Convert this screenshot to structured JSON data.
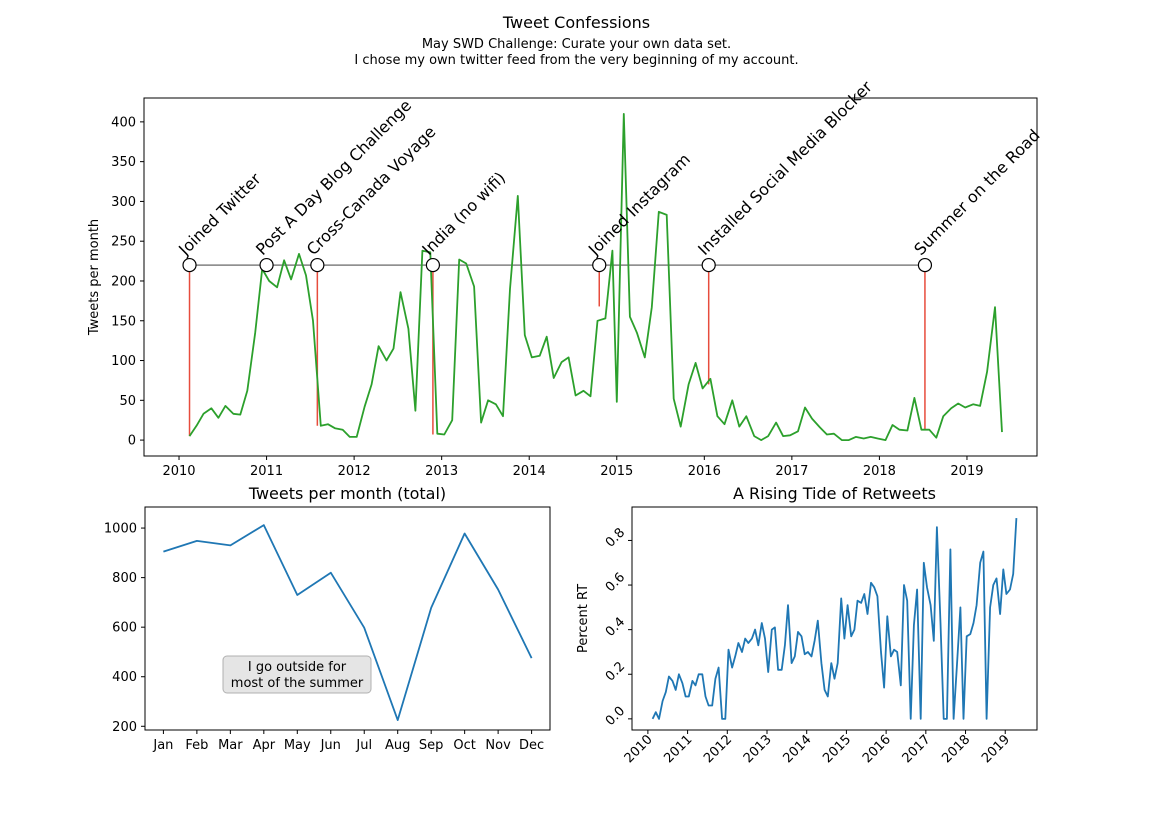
{
  "header": {
    "title": "Tweet Confessions",
    "subtitle_line1": "May SWD Challenge: Curate your own data set.",
    "subtitle_line2": "I chose my own twitter feed from the very beginning of my account."
  },
  "chart_data": [
    {
      "id": "timeline",
      "type": "line",
      "title": "",
      "xlabel": "",
      "ylabel": "Tweets per month",
      "xlim": [
        2009.6,
        2019.8
      ],
      "ylim": [
        -20,
        430
      ],
      "xticks": [
        2010,
        2011,
        2012,
        2013,
        2014,
        2015,
        2016,
        2017,
        2018,
        2019
      ],
      "yticks": [
        0,
        50,
        100,
        150,
        200,
        250,
        300,
        350,
        400
      ],
      "grid": false,
      "series": [
        {
          "color": "#2ca02c",
          "points": [
            [
              2010.12,
              5
            ],
            [
              2010.2,
              18
            ],
            [
              2010.28,
              33
            ],
            [
              2010.37,
              40
            ],
            [
              2010.45,
              28
            ],
            [
              2010.53,
              43
            ],
            [
              2010.62,
              33
            ],
            [
              2010.7,
              32
            ],
            [
              2010.78,
              62
            ],
            [
              2010.87,
              135
            ],
            [
              2010.95,
              215
            ],
            [
              2011.03,
              200
            ],
            [
              2011.12,
              192
            ],
            [
              2011.2,
              226
            ],
            [
              2011.28,
              202
            ],
            [
              2011.37,
              234
            ],
            [
              2011.45,
              207
            ],
            [
              2011.53,
              150
            ],
            [
              2011.62,
              18
            ],
            [
              2011.7,
              20
            ],
            [
              2011.78,
              15
            ],
            [
              2011.87,
              13
            ],
            [
              2011.95,
              4
            ],
            [
              2012.03,
              4
            ],
            [
              2012.12,
              42
            ],
            [
              2012.2,
              70
            ],
            [
              2012.28,
              118
            ],
            [
              2012.37,
              100
            ],
            [
              2012.45,
              115
            ],
            [
              2012.53,
              186
            ],
            [
              2012.62,
              140
            ],
            [
              2012.7,
              37
            ],
            [
              2012.78,
              238
            ],
            [
              2012.87,
              236
            ],
            [
              2012.95,
              8
            ],
            [
              2013.03,
              7
            ],
            [
              2013.12,
              25
            ],
            [
              2013.2,
              227
            ],
            [
              2013.28,
              222
            ],
            [
              2013.37,
              193
            ],
            [
              2013.45,
              22
            ],
            [
              2013.53,
              50
            ],
            [
              2013.62,
              45
            ],
            [
              2013.7,
              30
            ],
            [
              2013.78,
              190
            ],
            [
              2013.87,
              307
            ],
            [
              2013.95,
              132
            ],
            [
              2014.03,
              104
            ],
            [
              2014.12,
              106
            ],
            [
              2014.2,
              130
            ],
            [
              2014.28,
              78
            ],
            [
              2014.37,
              98
            ],
            [
              2014.45,
              104
            ],
            [
              2014.53,
              56
            ],
            [
              2014.62,
              62
            ],
            [
              2014.7,
              55
            ],
            [
              2014.78,
              150
            ],
            [
              2014.87,
              153
            ],
            [
              2014.95,
              238
            ],
            [
              2015.0,
              48
            ],
            [
              2015.08,
              410
            ],
            [
              2015.15,
              155
            ],
            [
              2015.23,
              135
            ],
            [
              2015.32,
              104
            ],
            [
              2015.4,
              167
            ],
            [
              2015.48,
              287
            ],
            [
              2015.57,
              283
            ],
            [
              2015.65,
              52
            ],
            [
              2015.73,
              17
            ],
            [
              2015.82,
              70
            ],
            [
              2015.9,
              97
            ],
            [
              2015.98,
              65
            ],
            [
              2016.07,
              77
            ],
            [
              2016.15,
              30
            ],
            [
              2016.23,
              20
            ],
            [
              2016.32,
              50
            ],
            [
              2016.4,
              17
            ],
            [
              2016.48,
              30
            ],
            [
              2016.57,
              5
            ],
            [
              2016.65,
              0
            ],
            [
              2016.73,
              5
            ],
            [
              2016.82,
              22
            ],
            [
              2016.9,
              5
            ],
            [
              2016.98,
              6
            ],
            [
              2017.07,
              11
            ],
            [
              2017.15,
              41
            ],
            [
              2017.23,
              27
            ],
            [
              2017.32,
              16
            ],
            [
              2017.4,
              7
            ],
            [
              2017.48,
              8
            ],
            [
              2017.57,
              0
            ],
            [
              2017.65,
              0
            ],
            [
              2017.73,
              4
            ],
            [
              2017.82,
              2
            ],
            [
              2017.9,
              4
            ],
            [
              2017.98,
              2
            ],
            [
              2018.07,
              0
            ],
            [
              2018.15,
              19
            ],
            [
              2018.23,
              13
            ],
            [
              2018.32,
              12
            ],
            [
              2018.4,
              53
            ],
            [
              2018.48,
              13
            ],
            [
              2018.57,
              13
            ],
            [
              2018.65,
              3
            ],
            [
              2018.73,
              30
            ],
            [
              2018.82,
              40
            ],
            [
              2018.9,
              46
            ],
            [
              2018.98,
              41
            ],
            [
              2019.07,
              45
            ],
            [
              2019.15,
              43
            ],
            [
              2019.23,
              86
            ],
            [
              2019.32,
              167
            ],
            [
              2019.4,
              10
            ]
          ]
        }
      ],
      "reference_line": {
        "y": 220,
        "color": "#808080"
      },
      "event_color": "#e74c3c",
      "events": [
        {
          "label": "Joined Twitter",
          "x": 2010.12,
          "y_low": 5
        },
        {
          "label": "Post A Day Blog Challenge",
          "x": 2011.0,
          "y_low": 220
        },
        {
          "label": "Cross-Canada Voyage",
          "x": 2011.58,
          "y_low": 18
        },
        {
          "label": "India (no wifi)",
          "x": 2012.9,
          "y_low": 7
        },
        {
          "label": "Joined Instagram",
          "x": 2014.8,
          "y_low": 168
        },
        {
          "label": "Installed Social Media Blocker",
          "x": 2016.05,
          "y_low": 70
        },
        {
          "label": "Summer on the Road",
          "x": 2018.52,
          "y_low": 13
        }
      ]
    },
    {
      "id": "monthly",
      "type": "line",
      "title": "Tweets per month (total)",
      "xlabel": "",
      "ylabel": "",
      "categories": [
        "Jan",
        "Feb",
        "Mar",
        "Apr",
        "May",
        "Jun",
        "Jul",
        "Aug",
        "Sep",
        "Oct",
        "Nov",
        "Dec"
      ],
      "values": [
        905,
        948,
        930,
        1012,
        730,
        820,
        598,
        225,
        678,
        978,
        752,
        475
      ],
      "ylim": [
        185,
        1085
      ],
      "yticks": [
        200,
        400,
        600,
        800,
        1000
      ],
      "color": "#1f77b4",
      "annotation": {
        "line1": "I go outside for",
        "line2": "most of the summer"
      }
    },
    {
      "id": "retweets",
      "type": "line",
      "title": "A Rising Tide of Retweets",
      "xlabel": "",
      "ylabel": "Percent RT",
      "xlim": [
        2009.6,
        2019.8
      ],
      "ylim": [
        -0.05,
        0.95
      ],
      "xticks": [
        2010,
        2011,
        2012,
        2013,
        2014,
        2015,
        2016,
        2017,
        2018,
        2019
      ],
      "yticks": [
        0.0,
        0.2,
        0.4,
        0.6,
        0.8
      ],
      "color": "#1f77b4",
      "points": [
        [
          2010.12,
          0
        ],
        [
          2010.2,
          0.03
        ],
        [
          2010.28,
          0
        ],
        [
          2010.37,
          0.08
        ],
        [
          2010.45,
          0.12
        ],
        [
          2010.53,
          0.19
        ],
        [
          2010.62,
          0.17
        ],
        [
          2010.7,
          0.13
        ],
        [
          2010.78,
          0.2
        ],
        [
          2010.87,
          0.16
        ],
        [
          2010.95,
          0.1
        ],
        [
          2011.03,
          0.1
        ],
        [
          2011.12,
          0.17
        ],
        [
          2011.2,
          0.15
        ],
        [
          2011.28,
          0.2
        ],
        [
          2011.37,
          0.2
        ],
        [
          2011.45,
          0.1
        ],
        [
          2011.53,
          0.06
        ],
        [
          2011.62,
          0.06
        ],
        [
          2011.7,
          0.18
        ],
        [
          2011.78,
          0.23
        ],
        [
          2011.87,
          0
        ],
        [
          2011.95,
          0
        ],
        [
          2012.03,
          0.31
        ],
        [
          2012.12,
          0.23
        ],
        [
          2012.2,
          0.28
        ],
        [
          2012.28,
          0.34
        ],
        [
          2012.37,
          0.3
        ],
        [
          2012.45,
          0.36
        ],
        [
          2012.53,
          0.34
        ],
        [
          2012.62,
          0.36
        ],
        [
          2012.7,
          0.4
        ],
        [
          2012.78,
          0.33
        ],
        [
          2012.87,
          0.43
        ],
        [
          2012.95,
          0.36
        ],
        [
          2013.03,
          0.21
        ],
        [
          2013.12,
          0.4
        ],
        [
          2013.2,
          0.41
        ],
        [
          2013.28,
          0.22
        ],
        [
          2013.37,
          0.22
        ],
        [
          2013.45,
          0.33
        ],
        [
          2013.53,
          0.51
        ],
        [
          2013.62,
          0.25
        ],
        [
          2013.7,
          0.28
        ],
        [
          2013.78,
          0.39
        ],
        [
          2013.87,
          0.37
        ],
        [
          2013.95,
          0.29
        ],
        [
          2014.03,
          0.3
        ],
        [
          2014.12,
          0.28
        ],
        [
          2014.2,
          0.35
        ],
        [
          2014.28,
          0.44
        ],
        [
          2014.37,
          0.25
        ],
        [
          2014.45,
          0.13
        ],
        [
          2014.53,
          0.1
        ],
        [
          2014.62,
          0.25
        ],
        [
          2014.7,
          0.18
        ],
        [
          2014.78,
          0.25
        ],
        [
          2014.87,
          0.54
        ],
        [
          2014.95,
          0.36
        ],
        [
          2015.03,
          0.51
        ],
        [
          2015.12,
          0.37
        ],
        [
          2015.2,
          0.4
        ],
        [
          2015.28,
          0.53
        ],
        [
          2015.37,
          0.52
        ],
        [
          2015.45,
          0.56
        ],
        [
          2015.53,
          0.47
        ],
        [
          2015.62,
          0.61
        ],
        [
          2015.7,
          0.59
        ],
        [
          2015.78,
          0.55
        ],
        [
          2015.87,
          0.3
        ],
        [
          2015.95,
          0.14
        ],
        [
          2016.03,
          0.46
        ],
        [
          2016.12,
          0.28
        ],
        [
          2016.2,
          0.31
        ],
        [
          2016.28,
          0.3
        ],
        [
          2016.37,
          0.15
        ],
        [
          2016.45,
          0.6
        ],
        [
          2016.53,
          0.53
        ],
        [
          2016.62,
          0
        ],
        [
          2016.7,
          0.42
        ],
        [
          2016.78,
          0.58
        ],
        [
          2016.87,
          0
        ],
        [
          2016.95,
          0.7
        ],
        [
          2017.03,
          0.59
        ],
        [
          2017.12,
          0.51
        ],
        [
          2017.2,
          0.35
        ],
        [
          2017.28,
          0.86
        ],
        [
          2017.37,
          0.43
        ],
        [
          2017.45,
          0
        ],
        [
          2017.53,
          0
        ],
        [
          2017.62,
          0.76
        ],
        [
          2017.7,
          0
        ],
        [
          2017.78,
          0.23
        ],
        [
          2017.87,
          0.5
        ],
        [
          2017.95,
          0
        ],
        [
          2018.03,
          0.37
        ],
        [
          2018.12,
          0.38
        ],
        [
          2018.2,
          0.43
        ],
        [
          2018.28,
          0.51
        ],
        [
          2018.37,
          0.7
        ],
        [
          2018.45,
          0.75
        ],
        [
          2018.53,
          0
        ],
        [
          2018.62,
          0.5
        ],
        [
          2018.7,
          0.6
        ],
        [
          2018.78,
          0.63
        ],
        [
          2018.87,
          0.47
        ],
        [
          2018.95,
          0.67
        ],
        [
          2019.03,
          0.56
        ],
        [
          2019.12,
          0.58
        ],
        [
          2019.2,
          0.65
        ],
        [
          2019.28,
          0.9
        ]
      ]
    }
  ]
}
